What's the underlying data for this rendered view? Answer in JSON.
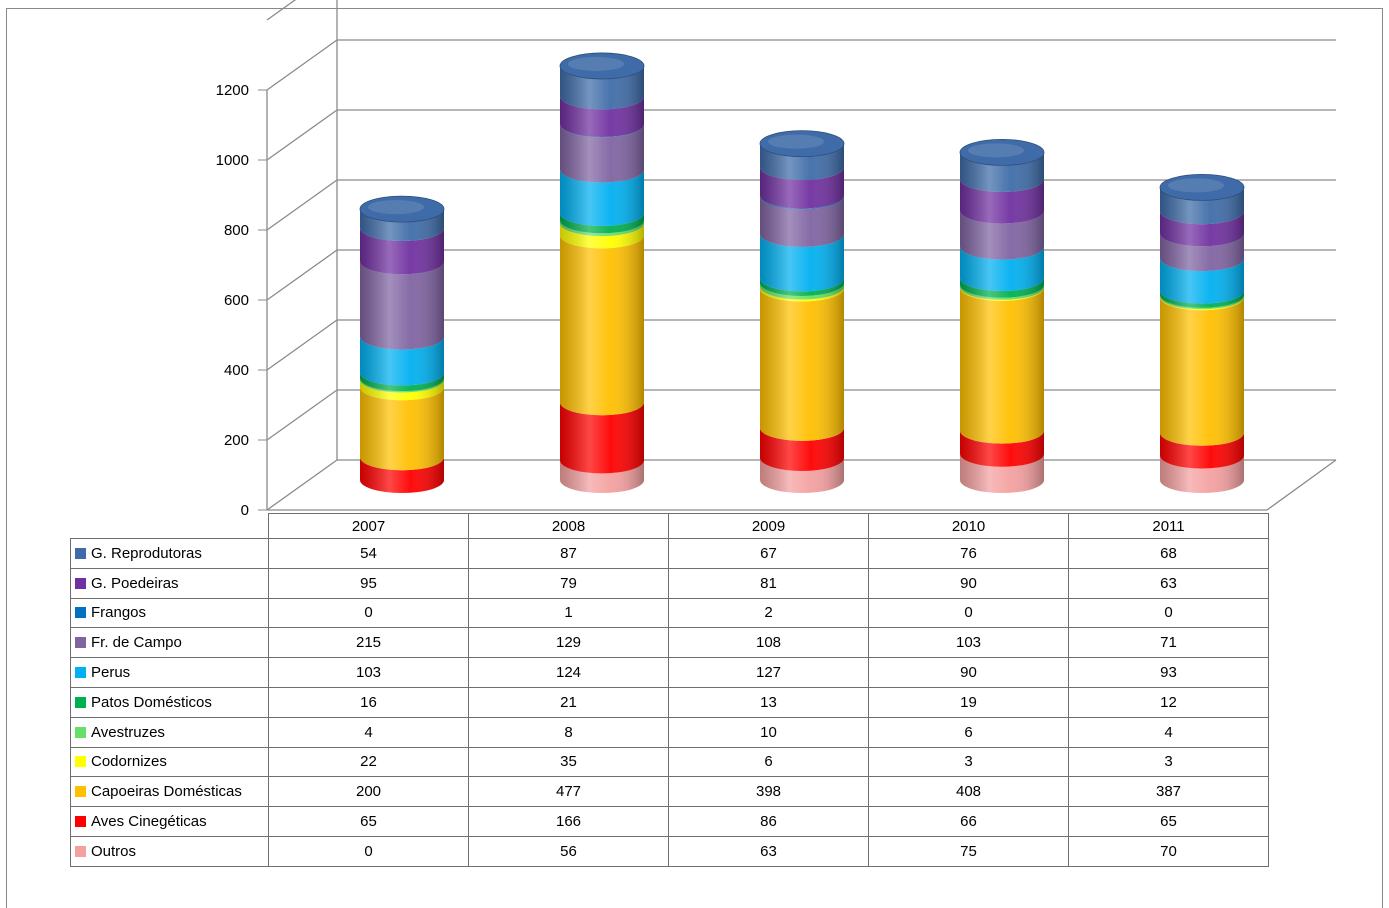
{
  "chart_data": {
    "type": "bar",
    "stacked": true,
    "three_d": true,
    "categories": [
      "2007",
      "2008",
      "2009",
      "2010",
      "2011"
    ],
    "ylim": [
      0,
      1200
    ],
    "yticks": [
      "0",
      "200",
      "400",
      "600",
      "800",
      "1000",
      "1200"
    ],
    "grid": true,
    "legend": "data-table",
    "series": [
      {
        "name": "G. Reprodutoras",
        "color": "#3F6CA8",
        "values": [
          54,
          87,
          67,
          76,
          68
        ]
      },
      {
        "name": "G. Poedeiras",
        "color": "#7030A0",
        "values": [
          95,
          79,
          81,
          90,
          63
        ]
      },
      {
        "name": "Frangos",
        "color": "#0070C0",
        "values": [
          0,
          1,
          2,
          0,
          0
        ]
      },
      {
        "name": "Fr. de Campo",
        "color": "#8064A2",
        "values": [
          215,
          129,
          108,
          103,
          71
        ]
      },
      {
        "name": "Perus",
        "color": "#00B0F0",
        "values": [
          103,
          124,
          127,
          90,
          93
        ]
      },
      {
        "name": "Patos Domésticos",
        "color": "#00B050",
        "values": [
          16,
          21,
          13,
          19,
          12
        ]
      },
      {
        "name": "Avestruzes",
        "color": "#66E066",
        "values": [
          4,
          8,
          10,
          6,
          4
        ]
      },
      {
        "name": "Codornizes",
        "color": "#FFFF00",
        "values": [
          22,
          35,
          6,
          3,
          3
        ]
      },
      {
        "name": "Capoeiras Domésticas",
        "color": "#FFC000",
        "values": [
          200,
          477,
          398,
          408,
          387
        ]
      },
      {
        "name": "Aves Cinegéticas",
        "color": "#FF0000",
        "values": [
          65,
          166,
          86,
          66,
          65
        ]
      },
      {
        "name": "Outros",
        "color": "#F4A0A0",
        "values": [
          0,
          56,
          63,
          75,
          70
        ]
      }
    ]
  }
}
